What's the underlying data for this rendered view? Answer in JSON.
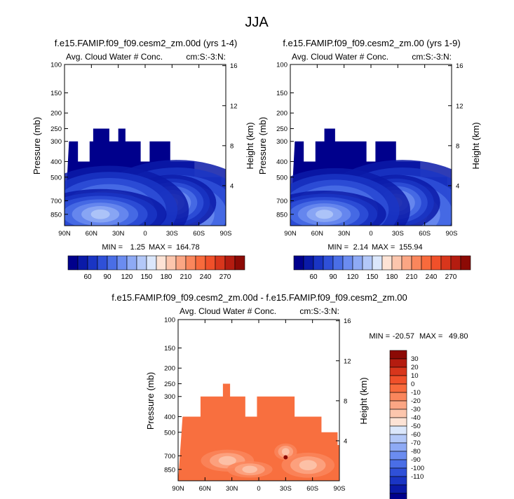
{
  "figure_title": "JJA",
  "palette": {
    "blues": [
      "#00008c",
      "#0a1aa8",
      "#1a35c4",
      "#2f50d8",
      "#4a6ee6",
      "#6b8cf0",
      "#8eaaf5",
      "#b3c8f8",
      "#dbe7fb"
    ],
    "reds": [
      "#fde3d5",
      "#fcc6ad",
      "#fba684",
      "#fa865c",
      "#f86a3c",
      "#f0502a",
      "#d8361c",
      "#b41c10",
      "#8c0a05"
    ],
    "field": "#00008c",
    "diff_base": "#f86f3f"
  },
  "chart_data": [
    {
      "type": "heatmap",
      "title": "f.e15.FAMIP.f09_f09.cesm2_zm.00d (yrs 1-4)",
      "subtitle_left": "Avg. Cloud Water # Conc.",
      "subtitle_right": "cm:S:-3:N:",
      "ylabel": "Pressure (mb)",
      "ylabel_right": "Height (km)",
      "xticks": [
        "90N",
        "60N",
        "30N",
        "0",
        "30S",
        "60S",
        "90S"
      ],
      "xlim": [
        90,
        -90
      ],
      "yticks_left": [
        "100",
        "150",
        "200",
        "250",
        "300",
        "400",
        "500",
        "700",
        "850"
      ],
      "yticks_right": [
        "16",
        "12",
        "8",
        "4"
      ],
      "ylim": [
        1000,
        100
      ],
      "min_label": "MIN =",
      "min_value": "1.25",
      "max_label": "MAX =",
      "max_value": "164.78",
      "colorbar_labels": [
        "60",
        "90",
        "120",
        "150",
        "180",
        "210",
        "240",
        "270"
      ],
      "top_pressure": [
        [
          85,
          300
        ],
        [
          75,
          400
        ],
        [
          62,
          300
        ],
        [
          58,
          250
        ],
        [
          40,
          300
        ],
        [
          30,
          250
        ],
        [
          22,
          300
        ],
        [
          5,
          400
        ],
        [
          -5,
          300
        ],
        [
          -28,
          400
        ],
        [
          -55,
          500
        ],
        [
          -85,
          700
        ],
        [
          -90,
          1000
        ]
      ]
    },
    {
      "type": "heatmap",
      "title": "f.e15.FAMIP.f09_f09.cesm2_zm.00 (yrs 1-9)",
      "subtitle_left": "Avg. Cloud Water # Conc.",
      "subtitle_right": "cm:S:-3:N:",
      "ylabel": "Pressure (mb)",
      "ylabel_right": "Height (km)",
      "xticks": [
        "90N",
        "60N",
        "30N",
        "0",
        "30S",
        "60S",
        "90S"
      ],
      "xlim": [
        90,
        -90
      ],
      "yticks_left": [
        "100",
        "150",
        "200",
        "250",
        "300",
        "400",
        "500",
        "700",
        "850"
      ],
      "yticks_right": [
        "16",
        "12",
        "8",
        "4"
      ],
      "ylim": [
        1000,
        100
      ],
      "min_label": "MIN =",
      "min_value": "2.14",
      "max_label": "MAX =",
      "max_value": "155.94",
      "colorbar_labels": [
        "60",
        "90",
        "120",
        "150",
        "180",
        "210",
        "240",
        "270"
      ],
      "top_pressure": [
        [
          85,
          300
        ],
        [
          75,
          400
        ],
        [
          62,
          300
        ],
        [
          52,
          250
        ],
        [
          40,
          300
        ],
        [
          30,
          300
        ],
        [
          22,
          300
        ],
        [
          5,
          400
        ],
        [
          -5,
          300
        ],
        [
          -28,
          400
        ],
        [
          -55,
          500
        ],
        [
          -85,
          700
        ],
        [
          -90,
          1000
        ]
      ]
    },
    {
      "type": "heatmap",
      "title": "f.e15.FAMIP.f09_f09.cesm2_zm.00d - f.e15.FAMIP.f09_f09.cesm2_zm.00",
      "subtitle_left": "Avg. Cloud Water # Conc.",
      "subtitle_right": "cm:S:-3:N:",
      "ylabel": "Pressure (mb)",
      "ylabel_right": "Height (km)",
      "xticks": [
        "90N",
        "60N",
        "30N",
        "0",
        "30S",
        "60S",
        "90S"
      ],
      "xlim": [
        90,
        -90
      ],
      "yticks_left": [
        "100",
        "150",
        "200",
        "250",
        "300",
        "400",
        "500",
        "700",
        "850"
      ],
      "yticks_right": [
        "16",
        "12",
        "8",
        "4"
      ],
      "ylim": [
        1000,
        100
      ],
      "min_label": "MIN = ",
      "min_value": "-20.57",
      "max_label": "MAX = ",
      "max_value": "49.80",
      "colorbar_labels": [
        "30",
        "20",
        "10",
        "0",
        "-10",
        "-20",
        "-30",
        "-40",
        "-50",
        "-60",
        "-70",
        "-80",
        "-90",
        "-100",
        "-110"
      ],
      "top_pressure": [
        [
          85,
          400
        ],
        [
          65,
          300
        ],
        [
          45,
          300
        ],
        [
          40,
          250
        ],
        [
          32,
          300
        ],
        [
          15,
          400
        ],
        [
          2,
          300
        ],
        [
          -30,
          300
        ],
        [
          -40,
          400
        ],
        [
          -70,
          500
        ],
        [
          -88,
          600
        ],
        [
          -90,
          1000
        ]
      ]
    }
  ]
}
